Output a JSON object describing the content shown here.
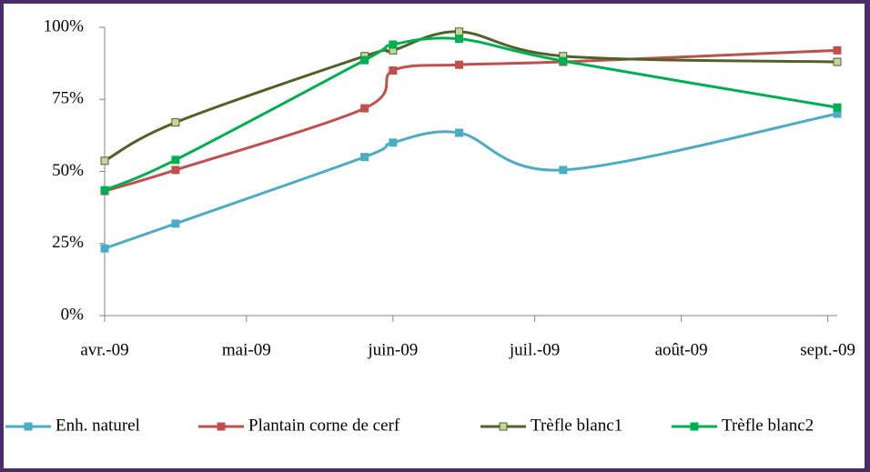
{
  "chart_data": {
    "type": "line",
    "x": [
      0,
      15,
      55,
      61,
      75,
      97,
      155
    ],
    "xlim": [
      0,
      155
    ],
    "xticks": [
      {
        "value": 0,
        "label": "avr.-09"
      },
      {
        "value": 30,
        "label": "mai-09"
      },
      {
        "value": 61,
        "label": "juin-09"
      },
      {
        "value": 91,
        "label": "juil.-09"
      },
      {
        "value": 122,
        "label": "août-09"
      },
      {
        "value": 153,
        "label": "sept.-09"
      }
    ],
    "ylim": [
      0,
      100
    ],
    "yticks": [
      {
        "value": 0,
        "label": "0%"
      },
      {
        "value": 25,
        "label": "25%"
      },
      {
        "value": 50,
        "label": "50%"
      },
      {
        "value": 75,
        "label": "75%"
      },
      {
        "value": 100,
        "label": "100%"
      }
    ],
    "smooth": true,
    "legend": "bottom",
    "series": [
      {
        "name": "Enh. naturel",
        "color": "#4bacc6",
        "values": [
          23.3,
          31.9,
          55,
          60,
          63.4,
          50.5,
          70
        ]
      },
      {
        "name": "Plantain corne de cerf",
        "color": "#c0504d",
        "values": [
          43.2,
          50.5,
          71.9,
          85,
          87,
          88,
          92
        ]
      },
      {
        "name": "Trèfle blanc1",
        "color": "#4f6228",
        "marker_color": "#c3d69b",
        "values": [
          53.7,
          67,
          90,
          92,
          98.5,
          90,
          88
        ]
      },
      {
        "name": "Trèfle blanc2",
        "color": "#00b050",
        "values": [
          43.5,
          54,
          88.6,
          94,
          96,
          88.3,
          72.2
        ]
      }
    ]
  }
}
